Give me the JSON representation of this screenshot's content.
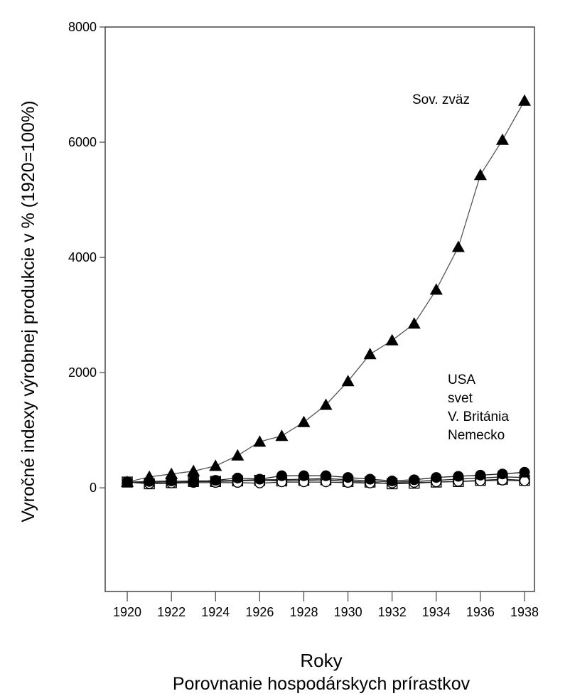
{
  "chart_data": {
    "type": "line",
    "title": "",
    "xlabel": "Roky",
    "caption": "Porovnanie hospodárskych prírastkov",
    "ylabel": "Vyročné indexy výrobnej produkcie v % (1920=100%)",
    "xlim": [
      1919,
      1938.45
    ],
    "ylim": [
      -1800,
      8000
    ],
    "xticks": [
      1920,
      1922,
      1924,
      1926,
      1928,
      1930,
      1932,
      1934,
      1936,
      1938
    ],
    "yticks": [
      0,
      2000,
      4000,
      6000,
      8000
    ],
    "grid": false,
    "x": [
      1920,
      1921,
      1922,
      1923,
      1924,
      1925,
      1926,
      1927,
      1928,
      1929,
      1930,
      1931,
      1932,
      1933,
      1934,
      1935,
      1936,
      1937,
      1938
    ],
    "series": [
      {
        "name": "Sov. zväz",
        "marker": "triangle-filled",
        "values": [
          100,
          190,
          240,
          290,
          380,
          560,
          800,
          900,
          1140,
          1440,
          1850,
          2320,
          2560,
          2850,
          3440,
          4180,
          5430,
          6040,
          6720
        ]
      },
      {
        "name": "USA",
        "marker": "square-open",
        "values": [
          100,
          70,
          90,
          110,
          110,
          120,
          130,
          120,
          130,
          140,
          110,
          100,
          70,
          80,
          100,
          110,
          130,
          150,
          130
        ]
      },
      {
        "name": "svet",
        "marker": "square-filled",
        "values": [
          100,
          90,
          110,
          120,
          120,
          130,
          140,
          140,
          150,
          160,
          140,
          120,
          100,
          110,
          130,
          150,
          170,
          190,
          180
        ]
      },
      {
        "name": "V. Británia",
        "marker": "circle-open",
        "values": [
          100,
          70,
          80,
          90,
          90,
          90,
          80,
          100,
          100,
          100,
          90,
          80,
          80,
          90,
          100,
          110,
          120,
          130,
          120
        ]
      },
      {
        "name": "Nemecko",
        "marker": "circle-filled",
        "values": [
          100,
          110,
          120,
          100,
          130,
          170,
          150,
          210,
          210,
          210,
          180,
          150,
          120,
          140,
          180,
          200,
          220,
          240,
          270
        ]
      }
    ],
    "annotations": {
      "top": "Sov. zväz",
      "group": [
        "USA",
        "svet",
        "V. Británia",
        "Nemecko"
      ]
    }
  }
}
